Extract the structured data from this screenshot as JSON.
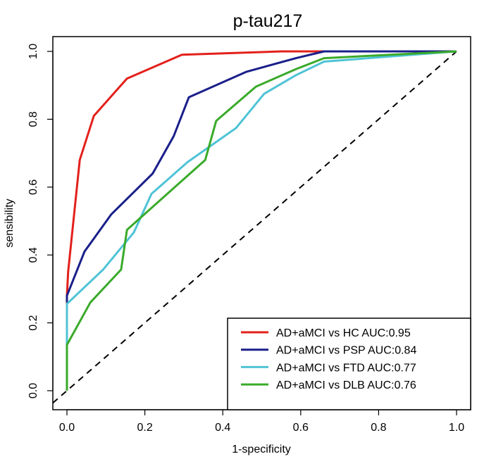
{
  "chart_data": {
    "type": "line",
    "title": "p-tau217",
    "xlabel": "1-specificity",
    "ylabel": "sensibility",
    "xlim": [
      0,
      1
    ],
    "ylim": [
      0,
      1
    ],
    "xticks": [
      "0.0",
      "0.2",
      "0.4",
      "0.6",
      "0.8",
      "1.0"
    ],
    "yticks": [
      "0.0",
      "0.2",
      "0.4",
      "0.6",
      "0.8",
      "1.0"
    ],
    "grid": false,
    "legend_position": "bottom-right",
    "reference_line": {
      "style": "dashed",
      "color": "#000000",
      "from": [
        0,
        0
      ],
      "to": [
        1,
        1
      ]
    },
    "series": [
      {
        "name": "AD+aMCI vs HC AUC:0.95",
        "color": "#e3201b",
        "x": [
          0,
          0,
          0.003,
          0.033,
          0.069,
          0.154,
          0.295,
          0.55,
          1.0
        ],
        "y": [
          0,
          0.28,
          0.35,
          0.68,
          0.81,
          0.92,
          0.99,
          1.0,
          1.0
        ]
      },
      {
        "name": "AD+aMCI vs PSP AUC:0.84",
        "color": "#1a1f8a",
        "x": [
          0,
          0,
          0.045,
          0.114,
          0.22,
          0.274,
          0.313,
          0.461,
          0.588,
          0.66,
          1.0
        ],
        "y": [
          0.26,
          0.28,
          0.41,
          0.52,
          0.64,
          0.75,
          0.865,
          0.94,
          0.98,
          1.0,
          1.0
        ]
      },
      {
        "name": "AD+aMCI vs FTD AUC:0.77",
        "color": "#4fc3d6",
        "x": [
          0,
          0,
          0.093,
          0.172,
          0.217,
          0.31,
          0.434,
          0.506,
          0.588,
          0.66,
          1.0
        ],
        "y": [
          0.135,
          0.256,
          0.357,
          0.467,
          0.58,
          0.674,
          0.774,
          0.875,
          0.93,
          0.97,
          1.0
        ]
      },
      {
        "name": "AD+aMCI vs DLB AUC:0.76",
        "color": "#3aaa2a",
        "x": [
          0,
          0,
          0.06,
          0.139,
          0.154,
          0.355,
          0.383,
          0.485,
          0.588,
          0.66,
          1.0
        ],
        "y": [
          0,
          0.135,
          0.26,
          0.357,
          0.474,
          0.68,
          0.795,
          0.896,
          0.948,
          0.98,
          1.0
        ]
      }
    ]
  }
}
